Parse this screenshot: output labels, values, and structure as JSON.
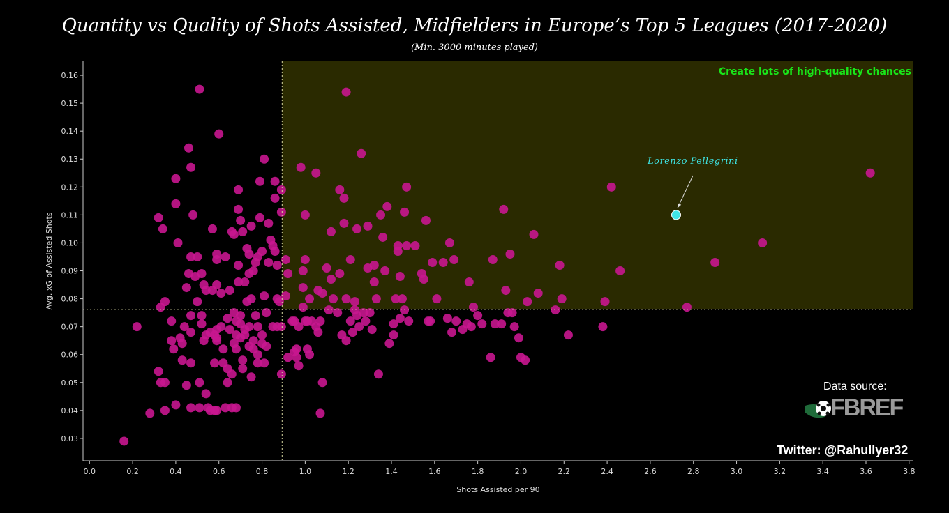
{
  "title": "Quantity vs Quality of Shots Assisted, Midfielders in Europe’s Top 5 Leagues (2017-2020)",
  "subtitle": "(Min. 3000 minutes played)",
  "quadrant_label": "Create lots of high-quality chances",
  "source_label": "Data source:",
  "logo_text": "FBREF",
  "twitter": "Twitter: @RahulIyer32",
  "colors": {
    "point": "#c8168f",
    "highlight": "#3fe6e6",
    "quadrant_fill": "#2a2a00",
    "quadrant_text": "#19e619",
    "guide": "#d8d8a0"
  },
  "chart_data": {
    "type": "scatter",
    "xlabel": "Shots Assisted per 90",
    "ylabel": "Avg. xG of Assisted Shots",
    "xlim": [
      -0.03,
      3.82
    ],
    "ylim": [
      0.022,
      0.165
    ],
    "xticks": [
      "0.0",
      "0.2",
      "0.4",
      "0.6",
      "0.8",
      "1.0",
      "1.2",
      "1.4",
      "1.6",
      "1.8",
      "2.0",
      "2.2",
      "2.4",
      "2.6",
      "2.8",
      "3.0",
      "3.2",
      "3.4",
      "3.6",
      "3.8"
    ],
    "yticks": [
      "0.03",
      "0.04",
      "0.05",
      "0.06",
      "0.07",
      "0.08",
      "0.09",
      "0.10",
      "0.11",
      "0.12",
      "0.13",
      "0.14",
      "0.15",
      "0.16"
    ],
    "mean_x": 0.893,
    "mean_y": 0.0762,
    "highlight": {
      "name": "Lorenzo Pellegrini",
      "x": 2.72,
      "y": 0.11
    },
    "points": [
      [
        0.16,
        0.029
      ],
      [
        0.22,
        0.07
      ],
      [
        0.28,
        0.039
      ],
      [
        0.32,
        0.109
      ],
      [
        0.32,
        0.054
      ],
      [
        0.33,
        0.077
      ],
      [
        0.33,
        0.05
      ],
      [
        0.34,
        0.105
      ],
      [
        0.35,
        0.05
      ],
      [
        0.35,
        0.04
      ],
      [
        0.35,
        0.079
      ],
      [
        0.38,
        0.072
      ],
      [
        0.38,
        0.065
      ],
      [
        0.39,
        0.062
      ],
      [
        0.4,
        0.123
      ],
      [
        0.4,
        0.114
      ],
      [
        0.4,
        0.042
      ],
      [
        0.41,
        0.1
      ],
      [
        0.42,
        0.066
      ],
      [
        0.43,
        0.064
      ],
      [
        0.43,
        0.058
      ],
      [
        0.44,
        0.07
      ],
      [
        0.45,
        0.084
      ],
      [
        0.45,
        0.049
      ],
      [
        0.46,
        0.134
      ],
      [
        0.46,
        0.089
      ],
      [
        0.47,
        0.127
      ],
      [
        0.47,
        0.095
      ],
      [
        0.47,
        0.074
      ],
      [
        0.47,
        0.068
      ],
      [
        0.47,
        0.057
      ],
      [
        0.47,
        0.041
      ],
      [
        0.48,
        0.11
      ],
      [
        0.49,
        0.088
      ],
      [
        0.5,
        0.095
      ],
      [
        0.5,
        0.079
      ],
      [
        0.51,
        0.05
      ],
      [
        0.51,
        0.041
      ],
      [
        0.51,
        0.155
      ],
      [
        0.52,
        0.074
      ],
      [
        0.52,
        0.071
      ],
      [
        0.52,
        0.089
      ],
      [
        0.53,
        0.085
      ],
      [
        0.53,
        0.065
      ],
      [
        0.54,
        0.083
      ],
      [
        0.54,
        0.067
      ],
      [
        0.54,
        0.046
      ],
      [
        0.55,
        0.041
      ],
      [
        0.56,
        0.04
      ],
      [
        0.56,
        0.068
      ],
      [
        0.57,
        0.083
      ],
      [
        0.57,
        0.105
      ],
      [
        0.58,
        0.067
      ],
      [
        0.58,
        0.057
      ],
      [
        0.58,
        0.04
      ],
      [
        0.59,
        0.096
      ],
      [
        0.59,
        0.094
      ],
      [
        0.59,
        0.085
      ],
      [
        0.59,
        0.069
      ],
      [
        0.59,
        0.066
      ],
      [
        0.59,
        0.065
      ],
      [
        0.59,
        0.04
      ],
      [
        0.6,
        0.139
      ],
      [
        0.61,
        0.082
      ],
      [
        0.61,
        0.07
      ],
      [
        0.62,
        0.062
      ],
      [
        0.62,
        0.057
      ],
      [
        0.63,
        0.095
      ],
      [
        0.63,
        0.041
      ],
      [
        0.64,
        0.073
      ],
      [
        0.64,
        0.055
      ],
      [
        0.64,
        0.05
      ],
      [
        0.65,
        0.083
      ],
      [
        0.65,
        0.069
      ],
      [
        0.66,
        0.104
      ],
      [
        0.66,
        0.053
      ],
      [
        0.66,
        0.041
      ],
      [
        0.67,
        0.103
      ],
      [
        0.67,
        0.075
      ],
      [
        0.67,
        0.064
      ],
      [
        0.68,
        0.072
      ],
      [
        0.68,
        0.067
      ],
      [
        0.68,
        0.062
      ],
      [
        0.68,
        0.041
      ],
      [
        0.69,
        0.119
      ],
      [
        0.69,
        0.112
      ],
      [
        0.69,
        0.092
      ],
      [
        0.69,
        0.086
      ],
      [
        0.7,
        0.108
      ],
      [
        0.7,
        0.074
      ],
      [
        0.7,
        0.071
      ],
      [
        0.7,
        0.066
      ],
      [
        0.71,
        0.104
      ],
      [
        0.71,
        0.058
      ],
      [
        0.71,
        0.055
      ],
      [
        0.72,
        0.086
      ],
      [
        0.72,
        0.069
      ],
      [
        0.72,
        0.067
      ],
      [
        0.73,
        0.098
      ],
      [
        0.73,
        0.079
      ],
      [
        0.74,
        0.096
      ],
      [
        0.74,
        0.089
      ],
      [
        0.74,
        0.07
      ],
      [
        0.74,
        0.063
      ],
      [
        0.75,
        0.106
      ],
      [
        0.75,
        0.08
      ],
      [
        0.75,
        0.052
      ],
      [
        0.76,
        0.09
      ],
      [
        0.76,
        0.065
      ],
      [
        0.76,
        0.062
      ],
      [
        0.77,
        0.093
      ],
      [
        0.77,
        0.074
      ],
      [
        0.78,
        0.095
      ],
      [
        0.78,
        0.07
      ],
      [
        0.78,
        0.06
      ],
      [
        0.78,
        0.057
      ],
      [
        0.79,
        0.122
      ],
      [
        0.79,
        0.109
      ],
      [
        0.8,
        0.097
      ],
      [
        0.8,
        0.067
      ],
      [
        0.8,
        0.064
      ],
      [
        0.81,
        0.13
      ],
      [
        0.81,
        0.081
      ],
      [
        0.81,
        0.057
      ],
      [
        0.82,
        0.075
      ],
      [
        0.82,
        0.063
      ],
      [
        0.83,
        0.107
      ],
      [
        0.83,
        0.093
      ],
      [
        0.84,
        0.101
      ],
      [
        0.85,
        0.07
      ],
      [
        0.85,
        0.099
      ],
      [
        0.86,
        0.122
      ],
      [
        0.86,
        0.116
      ],
      [
        0.86,
        0.097
      ],
      [
        0.87,
        0.08
      ],
      [
        0.87,
        0.07
      ],
      [
        0.87,
        0.092
      ],
      [
        0.88,
        0.079
      ],
      [
        0.89,
        0.119
      ],
      [
        0.89,
        0.111
      ],
      [
        0.89,
        0.07
      ],
      [
        0.89,
        0.053
      ],
      [
        0.91,
        0.094
      ],
      [
        0.91,
        0.081
      ],
      [
        0.92,
        0.089
      ],
      [
        0.92,
        0.059
      ],
      [
        0.94,
        0.072
      ],
      [
        0.95,
        0.072
      ],
      [
        0.95,
        0.061
      ],
      [
        0.96,
        0.062
      ],
      [
        0.96,
        0.059
      ],
      [
        0.97,
        0.056
      ],
      [
        0.97,
        0.07
      ],
      [
        0.98,
        0.127
      ],
      [
        0.99,
        0.084
      ],
      [
        0.99,
        0.09
      ],
      [
        0.99,
        0.077
      ],
      [
        1.0,
        0.094
      ],
      [
        1.0,
        0.11
      ],
      [
        1.0,
        0.072
      ],
      [
        1.01,
        0.072
      ],
      [
        1.01,
        0.062
      ],
      [
        1.02,
        0.08
      ],
      [
        1.02,
        0.06
      ],
      [
        1.03,
        0.072
      ],
      [
        1.05,
        0.125
      ],
      [
        1.05,
        0.07
      ],
      [
        1.06,
        0.083
      ],
      [
        1.06,
        0.068
      ],
      [
        1.07,
        0.072
      ],
      [
        1.07,
        0.039
      ],
      [
        1.08,
        0.082
      ],
      [
        1.08,
        0.05
      ],
      [
        1.1,
        0.091
      ],
      [
        1.11,
        0.076
      ],
      [
        1.12,
        0.104
      ],
      [
        1.12,
        0.087
      ],
      [
        1.13,
        0.08
      ],
      [
        1.15,
        0.075
      ],
      [
        1.16,
        0.089
      ],
      [
        1.16,
        0.119
      ],
      [
        1.17,
        0.067
      ],
      [
        1.18,
        0.107
      ],
      [
        1.18,
        0.116
      ],
      [
        1.19,
        0.08
      ],
      [
        1.19,
        0.154
      ],
      [
        1.19,
        0.065
      ],
      [
        1.21,
        0.094
      ],
      [
        1.21,
        0.072
      ],
      [
        1.22,
        0.068
      ],
      [
        1.23,
        0.079
      ],
      [
        1.23,
        0.076
      ],
      [
        1.24,
        0.074
      ],
      [
        1.25,
        0.07
      ],
      [
        1.24,
        0.105
      ],
      [
        1.26,
        0.132
      ],
      [
        1.27,
        0.075
      ],
      [
        1.28,
        0.072
      ],
      [
        1.29,
        0.091
      ],
      [
        1.29,
        0.106
      ],
      [
        1.3,
        0.075
      ],
      [
        1.31,
        0.069
      ],
      [
        1.32,
        0.092
      ],
      [
        1.32,
        0.086
      ],
      [
        1.33,
        0.08
      ],
      [
        1.34,
        0.053
      ],
      [
        1.35,
        0.11
      ],
      [
        1.36,
        0.102
      ],
      [
        1.37,
        0.09
      ],
      [
        1.38,
        0.113
      ],
      [
        1.39,
        0.064
      ],
      [
        1.41,
        0.067
      ],
      [
        1.41,
        0.071
      ],
      [
        1.42,
        0.08
      ],
      [
        1.43,
        0.099
      ],
      [
        1.43,
        0.097
      ],
      [
        1.44,
        0.088
      ],
      [
        1.44,
        0.073
      ],
      [
        1.45,
        0.08
      ],
      [
        1.46,
        0.076
      ],
      [
        1.46,
        0.111
      ],
      [
        1.47,
        0.12
      ],
      [
        1.47,
        0.099
      ],
      [
        1.48,
        0.072
      ],
      [
        1.51,
        0.099
      ],
      [
        1.54,
        0.089
      ],
      [
        1.55,
        0.087
      ],
      [
        1.56,
        0.108
      ],
      [
        1.57,
        0.072
      ],
      [
        1.58,
        0.072
      ],
      [
        1.59,
        0.093
      ],
      [
        1.61,
        0.08
      ],
      [
        1.64,
        0.093
      ],
      [
        1.66,
        0.073
      ],
      [
        1.67,
        0.1
      ],
      [
        1.68,
        0.068
      ],
      [
        1.69,
        0.094
      ],
      [
        1.7,
        0.072
      ],
      [
        1.73,
        0.069
      ],
      [
        1.75,
        0.071
      ],
      [
        1.76,
        0.086
      ],
      [
        1.77,
        0.07
      ],
      [
        1.78,
        0.077
      ],
      [
        1.8,
        0.074
      ],
      [
        1.82,
        0.071
      ],
      [
        1.86,
        0.059
      ],
      [
        1.87,
        0.094
      ],
      [
        1.88,
        0.071
      ],
      [
        1.91,
        0.071
      ],
      [
        1.92,
        0.112
      ],
      [
        1.93,
        0.083
      ],
      [
        1.94,
        0.075
      ],
      [
        1.95,
        0.096
      ],
      [
        1.96,
        0.075
      ],
      [
        1.97,
        0.07
      ],
      [
        1.99,
        0.066
      ],
      [
        2.0,
        0.059
      ],
      [
        2.02,
        0.058
      ],
      [
        2.03,
        0.079
      ],
      [
        2.06,
        0.103
      ],
      [
        2.08,
        0.082
      ],
      [
        2.16,
        0.076
      ],
      [
        2.18,
        0.092
      ],
      [
        2.19,
        0.08
      ],
      [
        2.22,
        0.067
      ],
      [
        2.38,
        0.07
      ],
      [
        2.39,
        0.079
      ],
      [
        2.42,
        0.12
      ],
      [
        2.46,
        0.09
      ],
      [
        2.77,
        0.077
      ],
      [
        2.9,
        0.093
      ],
      [
        3.12,
        0.1
      ],
      [
        3.62,
        0.125
      ]
    ]
  }
}
